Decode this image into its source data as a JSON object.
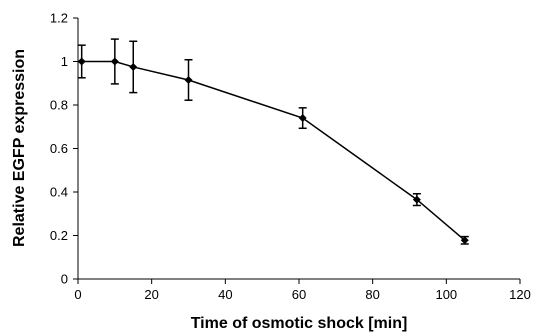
{
  "chart_data": {
    "type": "line",
    "title": "",
    "xlabel": "Time of osmotic shock [min]",
    "ylabel": "Relative EGFP expression",
    "xlim": [
      0,
      120
    ],
    "ylim": [
      0,
      1.2
    ],
    "x_ticks": [
      0,
      20,
      40,
      60,
      80,
      100,
      120
    ],
    "y_ticks": [
      0,
      0.2,
      0.4,
      0.6,
      0.8,
      1,
      1.2
    ],
    "x_tick_labels": [
      "0",
      "20",
      "40",
      "60",
      "80",
      "100",
      "120"
    ],
    "y_tick_labels": [
      "0",
      "0.2",
      "0.4",
      "0.6",
      "0.8",
      "1",
      "1.2"
    ],
    "grid": false,
    "legend": "none",
    "series": [
      {
        "color": "#000000",
        "marker": "diamond",
        "x": [
          1,
          10,
          15,
          30,
          61,
          92,
          105
        ],
        "y": [
          1.0,
          1.0,
          0.975,
          0.915,
          0.74,
          0.365,
          0.178
        ],
        "error": [
          0.075,
          0.103,
          0.118,
          0.093,
          0.047,
          0.027,
          0.017
        ]
      }
    ]
  }
}
